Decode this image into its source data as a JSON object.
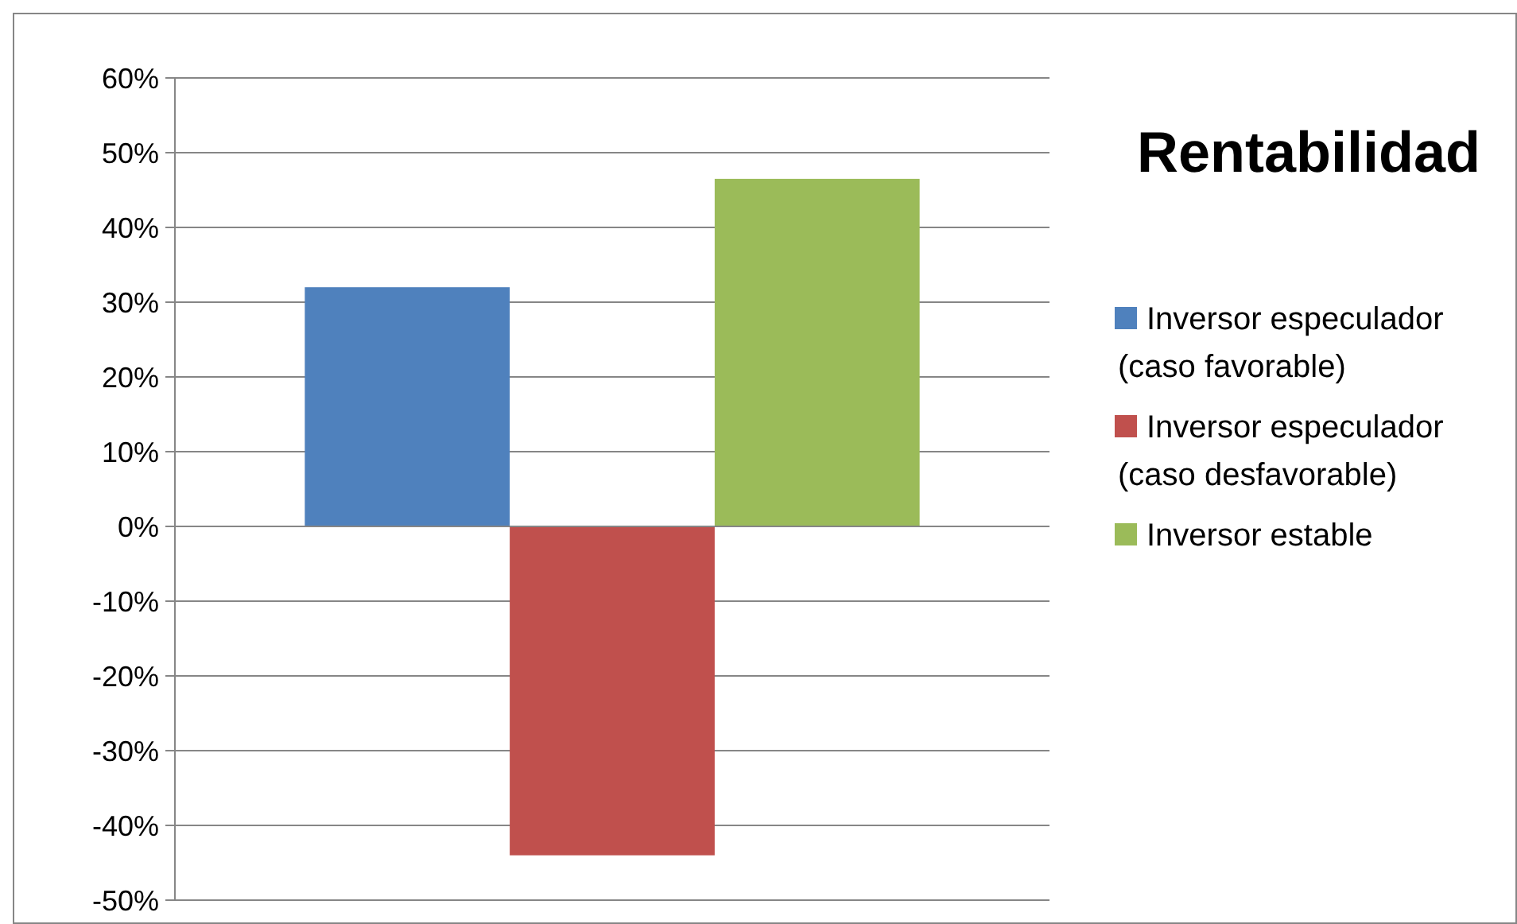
{
  "chart_data": {
    "type": "bar",
    "title": "Rentabilidad",
    "categories": [
      null
    ],
    "series": [
      {
        "name": "Inversor especulador (caso favorable)",
        "color": "#4f81bd",
        "values": [
          32
        ]
      },
      {
        "name": "Inversor especulador (caso desfavorable)",
        "color": "#c0504d",
        "values": [
          -44
        ]
      },
      {
        "name": "Inversor estable",
        "color": "#9bbb59",
        "values": [
          46.5
        ]
      }
    ],
    "ylim": [
      -50,
      60
    ],
    "yticks": [
      {
        "value": -50,
        "label": "-50%"
      },
      {
        "value": -40,
        "label": "-40%"
      },
      {
        "value": -30,
        "label": "-30%"
      },
      {
        "value": -20,
        "label": "-20%"
      },
      {
        "value": -10,
        "label": "-10%"
      },
      {
        "value": 0,
        "label": "0%"
      },
      {
        "value": 10,
        "label": "10%"
      },
      {
        "value": 20,
        "label": "20%"
      },
      {
        "value": 30,
        "label": "30%"
      },
      {
        "value": 40,
        "label": "40%"
      },
      {
        "value": 50,
        "label": "50%"
      },
      {
        "value": 60,
        "label": "60%"
      }
    ],
    "grid": "y",
    "legend": "right"
  }
}
